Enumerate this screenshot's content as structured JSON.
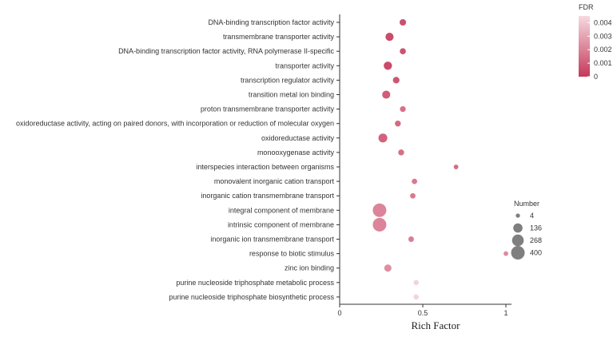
{
  "chart_data": {
    "type": "scatter",
    "xlabel": "Rich Factor",
    "ylabel": "",
    "xlim": [
      0,
      1.1
    ],
    "xticks": [
      0,
      0.5,
      1
    ],
    "xtick_labels": [
      "0",
      "0.5",
      "1"
    ],
    "grid": false,
    "categories": [
      "DNA-binding transcription factor activity",
      "transmembrane transporter activity",
      "DNA-binding transcription factor activity, RNA polymerase II-specific",
      "transporter activity",
      "transcription regulator activity",
      "transition metal ion binding",
      "proton transmembrane transporter activity",
      "oxidoreductase activity, acting on paired donors, with incorporation or reduction of molecular oxygen",
      "oxidoreductase activity",
      "monooxygenase activity",
      "interspecies interaction between organisms",
      "monovalent inorganic cation transport",
      "inorganic cation transmembrane transport",
      "integral component of membrane",
      "intrinsic component of membrane",
      "inorganic ion transmembrane transport",
      "response to biotic stimulus",
      "zinc ion binding",
      "purine nucleoside triphosphate metabolic process",
      "purine nucleoside triphosphate biosynthetic process"
    ],
    "points": [
      {
        "category": "DNA-binding transcription factor activity",
        "rich_factor": 0.38,
        "number": 40,
        "fdr": 0.0002
      },
      {
        "category": "transmembrane transporter activity",
        "rich_factor": 0.3,
        "number": 90,
        "fdr": 0.0001
      },
      {
        "category": "DNA-binding transcription factor activity, RNA polymerase II-specific",
        "rich_factor": 0.38,
        "number": 32,
        "fdr": 0.0003
      },
      {
        "category": "transporter activity",
        "rich_factor": 0.29,
        "number": 95,
        "fdr": 0.0001
      },
      {
        "category": "transcription regulator activity",
        "rich_factor": 0.34,
        "number": 42,
        "fdr": 0.0004
      },
      {
        "category": "transition metal ion binding",
        "rich_factor": 0.28,
        "number": 88,
        "fdr": 0.0006
      },
      {
        "category": "proton transmembrane transporter activity",
        "rich_factor": 0.38,
        "number": 26,
        "fdr": 0.0012
      },
      {
        "category": "oxidoreductase activity, acting on paired donors, with incorporation or reduction of molecular oxygen",
        "rich_factor": 0.35,
        "number": 28,
        "fdr": 0.001
      },
      {
        "category": "oxidoreductase activity",
        "rich_factor": 0.26,
        "number": 120,
        "fdr": 0.0008
      },
      {
        "category": "monooxygenase activity",
        "rich_factor": 0.37,
        "number": 28,
        "fdr": 0.0012
      },
      {
        "category": "interspecies interaction between organisms",
        "rich_factor": 0.7,
        "number": 8,
        "fdr": 0.0011
      },
      {
        "category": "monovalent inorganic cation transport",
        "rich_factor": 0.45,
        "number": 18,
        "fdr": 0.0015
      },
      {
        "category": "inorganic cation transmembrane transport",
        "rich_factor": 0.44,
        "number": 18,
        "fdr": 0.0015
      },
      {
        "category": "integral component of membrane",
        "rich_factor": 0.24,
        "number": 400,
        "fdr": 0.0018
      },
      {
        "category": "intrinsic component of membrane",
        "rich_factor": 0.24,
        "number": 400,
        "fdr": 0.0018
      },
      {
        "category": "inorganic ion transmembrane transport",
        "rich_factor": 0.43,
        "number": 20,
        "fdr": 0.0016
      },
      {
        "category": "response to biotic stimulus",
        "rich_factor": 1.0,
        "number": 8,
        "fdr": 0.002
      },
      {
        "category": "zinc ion binding",
        "rich_factor": 0.29,
        "number": 60,
        "fdr": 0.0021
      },
      {
        "category": "purine nucleoside triphosphate metabolic process",
        "rich_factor": 0.46,
        "number": 14,
        "fdr": 0.0042
      },
      {
        "category": "purine nucleoside triphosphate biosynthetic process",
        "rich_factor": 0.46,
        "number": 14,
        "fdr": 0.0042
      }
    ],
    "color_legend": {
      "title": "FDR",
      "min": 0,
      "max": 0.0045,
      "ticks": [
        0,
        0.001,
        0.002,
        0.003,
        0.004
      ],
      "tick_labels": [
        "0",
        "0.001",
        "0.002",
        "0.003",
        "0.004"
      ],
      "color_low": "#c5395a",
      "color_high": "#f6d9e0"
    },
    "size_legend": {
      "title": "Number",
      "values": [
        4,
        136,
        268,
        400
      ],
      "labels": [
        "4",
        "136",
        "268",
        "400"
      ],
      "color": "#7f7f7f"
    }
  }
}
